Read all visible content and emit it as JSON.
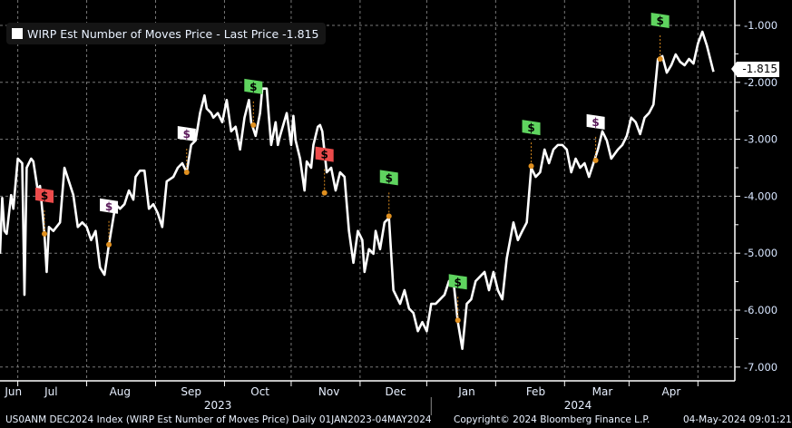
{
  "legend": {
    "label": "WIRP Est Number of Moves Price - Last Price -1.815"
  },
  "last_price_label": "-1.815",
  "footer": {
    "ticker": "US0ANM DEC2024 Index (WIRP Est Number of Moves Price)  Daily 01JAN2023-04MAY2024",
    "copyright": "Copyright© 2024 Bloomberg Finance L.P.",
    "timestamp": "04-May-2024 09:01:21"
  },
  "chart_data": {
    "type": "line",
    "title": "WIRP Est Number of Moves Price",
    "x_unit": "days since 2023-06-23",
    "ylim": [
      -7.0,
      -0.95
    ],
    "xlim": [
      0,
      330
    ],
    "grid": true,
    "yticks": [
      -1.0,
      -2.0,
      -3.0,
      -4.0,
      -5.0,
      -6.0,
      -7.0
    ],
    "ytick_labels": [
      "-1.000",
      "-2.000",
      "-3.000",
      "-4.000",
      "-5.000",
      "-6.000",
      "-7.000"
    ],
    "month_labels": [
      {
        "label": "Jun",
        "day": 6
      },
      {
        "label": "Jul",
        "day": 23
      },
      {
        "label": "Aug",
        "day": 54
      },
      {
        "label": "Sep",
        "day": 86
      },
      {
        "label": "Oct",
        "day": 117
      },
      {
        "label": "Nov",
        "day": 148
      },
      {
        "label": "Dec",
        "day": 178
      },
      {
        "label": "Jan",
        "day": 210
      },
      {
        "label": "Feb",
        "day": 241
      },
      {
        "label": "Mar",
        "day": 271
      },
      {
        "label": "Apr",
        "day": 302
      }
    ],
    "month_boundaries": [
      8,
      39,
      70,
      101,
      131,
      162,
      192,
      223,
      254,
      283,
      314
    ],
    "year_labels": [
      {
        "label": "2023",
        "day": 98
      },
      {
        "label": "2024",
        "day": 260
      }
    ],
    "year_divider_day": 194,
    "series": [
      {
        "name": "WIRP Est Number of Moves Price",
        "color": "#ffffff",
        "points": [
          [
            0,
            -5.01
          ],
          [
            1,
            -4.03
          ],
          [
            2,
            -4.61
          ],
          [
            3,
            -4.66
          ],
          [
            5,
            -3.98
          ],
          [
            6,
            -4.22
          ],
          [
            8,
            -3.34
          ],
          [
            10,
            -3.42
          ],
          [
            11,
            -5.73
          ],
          [
            12,
            -3.5
          ],
          [
            14,
            -3.34
          ],
          [
            15,
            -3.39
          ],
          [
            17,
            -3.9
          ],
          [
            18,
            -3.82
          ],
          [
            20,
            -4.66
          ],
          [
            21,
            -5.33
          ],
          [
            22,
            -4.54
          ],
          [
            24,
            -4.61
          ],
          [
            27,
            -4.46
          ],
          [
            29,
            -3.5
          ],
          [
            31,
            -3.74
          ],
          [
            33,
            -3.98
          ],
          [
            35,
            -4.54
          ],
          [
            37,
            -4.46
          ],
          [
            39,
            -4.54
          ],
          [
            41,
            -4.77
          ],
          [
            43,
            -4.61
          ],
          [
            45,
            -5.25
          ],
          [
            47,
            -5.38
          ],
          [
            49,
            -4.85
          ],
          [
            51,
            -4.38
          ],
          [
            52,
            -4.14
          ],
          [
            54,
            -4.22
          ],
          [
            56,
            -4.14
          ],
          [
            58,
            -3.9
          ],
          [
            60,
            -4.06
          ],
          [
            61,
            -3.66
          ],
          [
            63,
            -3.55
          ],
          [
            65,
            -3.55
          ],
          [
            67,
            -4.22
          ],
          [
            69,
            -4.14
          ],
          [
            71,
            -4.3
          ],
          [
            73,
            -4.54
          ],
          [
            75,
            -3.74
          ],
          [
            78,
            -3.66
          ],
          [
            80,
            -3.5
          ],
          [
            82,
            -3.42
          ],
          [
            84,
            -3.58
          ],
          [
            86,
            -3.1
          ],
          [
            88,
            -3.02
          ],
          [
            90,
            -2.54
          ],
          [
            92,
            -2.23
          ],
          [
            93,
            -2.46
          ],
          [
            95,
            -2.54
          ],
          [
            96,
            -2.62
          ],
          [
            98,
            -2.54
          ],
          [
            100,
            -2.7
          ],
          [
            102,
            -2.31
          ],
          [
            104,
            -2.86
          ],
          [
            106,
            -2.78
          ],
          [
            108,
            -3.18
          ],
          [
            110,
            -2.62
          ],
          [
            112,
            -2.31
          ],
          [
            113,
            -2.7
          ],
          [
            115,
            -2.94
          ],
          [
            117,
            -2.54
          ],
          [
            118,
            -2.11
          ],
          [
            120,
            -2.11
          ],
          [
            121,
            -2.62
          ],
          [
            122,
            -3.1
          ],
          [
            124,
            -2.7
          ],
          [
            125,
            -3.1
          ],
          [
            126,
            -2.94
          ],
          [
            129,
            -2.54
          ],
          [
            131,
            -3.1
          ],
          [
            132,
            -2.59
          ],
          [
            133,
            -3.02
          ],
          [
            135,
            -3.34
          ],
          [
            137,
            -3.9
          ],
          [
            138,
            -3.39
          ],
          [
            140,
            -3.5
          ],
          [
            141,
            -3.1
          ],
          [
            143,
            -2.78
          ],
          [
            144,
            -2.75
          ],
          [
            145,
            -2.86
          ],
          [
            147,
            -3.58
          ],
          [
            149,
            -3.5
          ],
          [
            151,
            -3.9
          ],
          [
            153,
            -3.58
          ],
          [
            155,
            -3.66
          ],
          [
            157,
            -4.61
          ],
          [
            159,
            -5.17
          ],
          [
            161,
            -4.61
          ],
          [
            163,
            -4.77
          ],
          [
            164,
            -5.33
          ],
          [
            166,
            -4.93
          ],
          [
            168,
            -5.01
          ],
          [
            169,
            -4.61
          ],
          [
            171,
            -4.93
          ],
          [
            173,
            -4.46
          ],
          [
            175,
            -4.38
          ],
          [
            177,
            -5.65
          ],
          [
            180,
            -5.89
          ],
          [
            182,
            -5.65
          ],
          [
            184,
            -5.97
          ],
          [
            186,
            -6.05
          ],
          [
            188,
            -6.37
          ],
          [
            190,
            -6.21
          ],
          [
            192,
            -6.37
          ],
          [
            194,
            -5.89
          ],
          [
            196,
            -5.89
          ],
          [
            198,
            -5.81
          ],
          [
            200,
            -5.73
          ],
          [
            202,
            -5.49
          ],
          [
            204,
            -5.49
          ],
          [
            206,
            -6.21
          ],
          [
            208,
            -6.68
          ],
          [
            210,
            -5.89
          ],
          [
            212,
            -5.81
          ],
          [
            214,
            -5.49
          ],
          [
            216,
            -5.41
          ],
          [
            218,
            -5.33
          ],
          [
            220,
            -5.65
          ],
          [
            222,
            -5.33
          ],
          [
            224,
            -5.65
          ],
          [
            226,
            -5.81
          ],
          [
            228,
            -5.09
          ],
          [
            231,
            -4.46
          ],
          [
            233,
            -4.77
          ],
          [
            235,
            -4.61
          ],
          [
            237,
            -4.46
          ],
          [
            239,
            -3.5
          ],
          [
            241,
            -3.66
          ],
          [
            243,
            -3.58
          ],
          [
            245,
            -3.18
          ],
          [
            247,
            -3.42
          ],
          [
            249,
            -3.18
          ],
          [
            251,
            -3.1
          ],
          [
            253,
            -3.1
          ],
          [
            255,
            -3.18
          ],
          [
            257,
            -3.58
          ],
          [
            259,
            -3.34
          ],
          [
            261,
            -3.5
          ],
          [
            263,
            -3.42
          ],
          [
            265,
            -3.66
          ],
          [
            267,
            -3.42
          ],
          [
            269,
            -3.18
          ],
          [
            271,
            -2.86
          ],
          [
            273,
            -3.02
          ],
          [
            275,
            -3.34
          ],
          [
            278,
            -3.18
          ],
          [
            280,
            -3.1
          ],
          [
            282,
            -2.94
          ],
          [
            284,
            -2.62
          ],
          [
            286,
            -2.7
          ],
          [
            288,
            -2.91
          ],
          [
            290,
            -2.62
          ],
          [
            292,
            -2.54
          ],
          [
            294,
            -2.39
          ],
          [
            296,
            -1.59
          ],
          [
            298,
            -1.54
          ],
          [
            300,
            -1.83
          ],
          [
            302,
            -1.7
          ],
          [
            304,
            -1.51
          ],
          [
            306,
            -1.64
          ],
          [
            308,
            -1.7
          ],
          [
            310,
            -1.59
          ],
          [
            312,
            -1.67
          ],
          [
            314,
            -1.32
          ],
          [
            316,
            -1.11
          ],
          [
            318,
            -1.35
          ],
          [
            321,
            -1.815
          ]
        ]
      }
    ],
    "annotations": [
      {
        "day": 20,
        "value": -4.66,
        "symbol": "$",
        "color": "#ec4b4b"
      },
      {
        "day": 49,
        "value": -4.85,
        "symbol": "$",
        "color": "#ffffff"
      },
      {
        "day": 84,
        "value": -3.58,
        "symbol": "$",
        "color": "#ffffff"
      },
      {
        "day": 114,
        "value": -2.75,
        "symbol": "$",
        "color": "#5fd45f"
      },
      {
        "day": 146,
        "value": -3.94,
        "symbol": "$",
        "color": "#ec4b4b"
      },
      {
        "day": 175,
        "value": -4.35,
        "symbol": "$",
        "color": "#5fd45f"
      },
      {
        "day": 206,
        "value": -6.18,
        "symbol": "$",
        "color": "#5fd45f"
      },
      {
        "day": 239,
        "value": -3.47,
        "symbol": "$",
        "color": "#5fd45f"
      },
      {
        "day": 268,
        "value": -3.37,
        "symbol": "$",
        "color": "#ffffff"
      },
      {
        "day": 297,
        "value": -1.59,
        "symbol": "$",
        "color": "#5fd45f"
      }
    ]
  }
}
